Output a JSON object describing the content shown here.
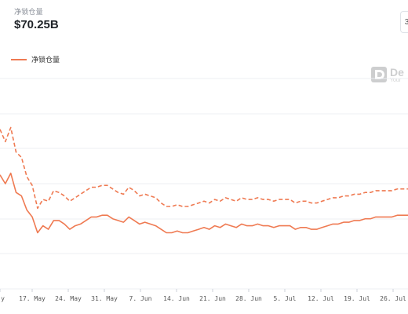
{
  "header": {
    "subtitle": "净锁仓量",
    "value": "$70.25B"
  },
  "corner_button": {
    "icon": "chevron-icon",
    "label": "3"
  },
  "watermark": {
    "title": "De",
    "subtitle": "Your"
  },
  "colors": {
    "series": "#ef7a52",
    "grid": "#eceff3"
  },
  "chart_data": {
    "type": "line",
    "x_ticks": [
      "y",
      "17. May",
      "24. May",
      "31. May",
      "7. Jun",
      "14. Jun",
      "21. Jun",
      "28. Jun",
      "5. Jul",
      "12. Jul",
      "19. Jul",
      "26. Jul"
    ],
    "grid": true,
    "legend_position": "top-left",
    "series": [
      {
        "name": "净锁仓量",
        "style": "solid",
        "x": [
          0,
          1,
          2,
          3,
          4,
          5,
          6,
          7,
          8,
          9,
          10,
          11,
          12,
          13,
          14,
          15,
          16,
          17,
          18,
          19,
          20,
          21,
          22,
          23,
          24,
          25,
          26,
          27,
          28,
          29,
          30,
          31,
          32,
          33,
          34,
          35,
          36,
          37,
          38,
          39,
          40,
          41,
          42,
          43,
          44,
          45,
          46,
          47,
          48,
          49,
          50,
          51,
          52,
          53,
          54,
          55,
          56,
          57,
          58,
          59,
          60,
          61,
          62,
          63,
          64,
          65,
          66,
          67,
          68,
          69,
          70,
          71,
          72,
          73,
          74,
          75,
          76
        ],
        "values": [
          85,
          80,
          86,
          75,
          73,
          65,
          61,
          52,
          56,
          54,
          59,
          59,
          57,
          54,
          56,
          57,
          59,
          61,
          61,
          62,
          62,
          60,
          59,
          58,
          61,
          59,
          57,
          58,
          57,
          56,
          54,
          52,
          52,
          53,
          52,
          52,
          53,
          54,
          55,
          54,
          56,
          55,
          57,
          56,
          55,
          57,
          56,
          56,
          57,
          56,
          56,
          55,
          56,
          56,
          56,
          54,
          55,
          55,
          54,
          54,
          55,
          56,
          57,
          57,
          58,
          58,
          59,
          59,
          60,
          60,
          61,
          61,
          61,
          61,
          62,
          62,
          62
        ]
      },
      {
        "name": "",
        "style": "dashed",
        "x": [
          0,
          1,
          2,
          3,
          4,
          5,
          6,
          7,
          8,
          9,
          10,
          11,
          12,
          13,
          14,
          15,
          16,
          17,
          18,
          19,
          20,
          21,
          22,
          23,
          24,
          25,
          26,
          27,
          28,
          29,
          30,
          31,
          32,
          33,
          34,
          35,
          36,
          37,
          38,
          39,
          40,
          41,
          42,
          43,
          44,
          45,
          46,
          47,
          48,
          49,
          50,
          51,
          52,
          53,
          54,
          55,
          56,
          57,
          58,
          59,
          60,
          61,
          62,
          63,
          64,
          65,
          66,
          67,
          68,
          69,
          70,
          71,
          72,
          73,
          74,
          75,
          76
        ],
        "values": [
          111,
          104,
          112,
          98,
          95,
          84,
          79,
          66,
          71,
          70,
          76,
          75,
          73,
          70,
          72,
          74,
          76,
          78,
          78,
          79,
          79,
          77,
          75,
          74,
          78,
          76,
          73,
          74,
          73,
          72,
          69,
          67,
          67,
          68,
          67,
          67,
          68,
          69,
          70,
          69,
          71,
          70,
          72,
          71,
          70,
          72,
          71,
          71,
          72,
          71,
          71,
          70,
          71,
          71,
          71,
          69,
          70,
          70,
          69,
          69,
          70,
          71,
          72,
          72,
          73,
          73,
          74,
          74,
          75,
          75,
          76,
          76,
          76,
          76,
          77,
          77,
          77
        ]
      }
    ],
    "xlim": [
      0,
      76
    ],
    "ylim": [
      20,
      140
    ]
  }
}
